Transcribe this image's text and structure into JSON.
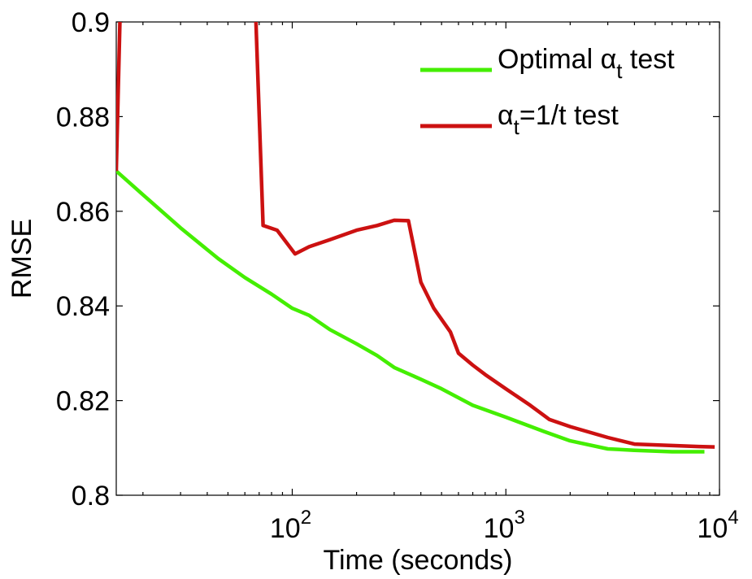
{
  "chart_data": {
    "type": "line",
    "title": "",
    "xlabel": "Time (seconds)",
    "ylabel": "RMSE",
    "xscale": "log",
    "xlim": [
      15,
      10000
    ],
    "ylim": [
      0.8,
      0.9
    ],
    "x_ticks": [
      {
        "value": 100,
        "base": "10",
        "exp": "2"
      },
      {
        "value": 1000,
        "base": "10",
        "exp": "3"
      },
      {
        "value": 10000,
        "base": "10",
        "exp": "4"
      }
    ],
    "y_ticks": [
      {
        "value": 0.8,
        "label": "0.8"
      },
      {
        "value": 0.82,
        "label": "0.82"
      },
      {
        "value": 0.84,
        "label": "0.84"
      },
      {
        "value": 0.86,
        "label": "0.86"
      },
      {
        "value": 0.88,
        "label": "0.88"
      },
      {
        "value": 0.9,
        "label": "0.9"
      }
    ],
    "legend_position": "top-right",
    "series": [
      {
        "name": "Optimal αt test",
        "legend_main": "Optimal α",
        "legend_sub": "t",
        "legend_rest": " test",
        "color": "#44ee00",
        "points": [
          [
            15,
            0.8685
          ],
          [
            20,
            0.8635
          ],
          [
            30,
            0.8565
          ],
          [
            45,
            0.85
          ],
          [
            60,
            0.846
          ],
          [
            80,
            0.8425
          ],
          [
            100,
            0.8395
          ],
          [
            120,
            0.838
          ],
          [
            150,
            0.835
          ],
          [
            200,
            0.832
          ],
          [
            250,
            0.8295
          ],
          [
            300,
            0.827
          ],
          [
            400,
            0.8245
          ],
          [
            500,
            0.8225
          ],
          [
            700,
            0.819
          ],
          [
            1000,
            0.8165
          ],
          [
            1500,
            0.8135
          ],
          [
            2000,
            0.8115
          ],
          [
            3000,
            0.8098
          ],
          [
            4000,
            0.8095
          ],
          [
            6000,
            0.8092
          ],
          [
            8500,
            0.8092
          ]
        ]
      },
      {
        "name": "αt=1/t test",
        "legend_main": "α",
        "legend_sub": "t",
        "legend_rest": "=1/t test",
        "color": "#cc1111",
        "points": [
          [
            15,
            0.8685
          ],
          [
            15.7,
            0.905
          ],
          [
            67,
            0.905
          ],
          [
            73,
            0.857
          ],
          [
            85,
            0.856
          ],
          [
            103,
            0.851
          ],
          [
            120,
            0.8525
          ],
          [
            150,
            0.854
          ],
          [
            200,
            0.856
          ],
          [
            250,
            0.857
          ],
          [
            300,
            0.8581
          ],
          [
            350,
            0.858
          ],
          [
            400,
            0.845
          ],
          [
            460,
            0.8395
          ],
          [
            550,
            0.8345
          ],
          [
            600,
            0.83
          ],
          [
            700,
            0.8275
          ],
          [
            800,
            0.8255
          ],
          [
            1000,
            0.8225
          ],
          [
            1300,
            0.819
          ],
          [
            1600,
            0.816
          ],
          [
            2000,
            0.8145
          ],
          [
            3000,
            0.8122
          ],
          [
            4000,
            0.8108
          ],
          [
            6000,
            0.8105
          ],
          [
            8000,
            0.8103
          ],
          [
            9500,
            0.8102
          ]
        ]
      }
    ]
  }
}
